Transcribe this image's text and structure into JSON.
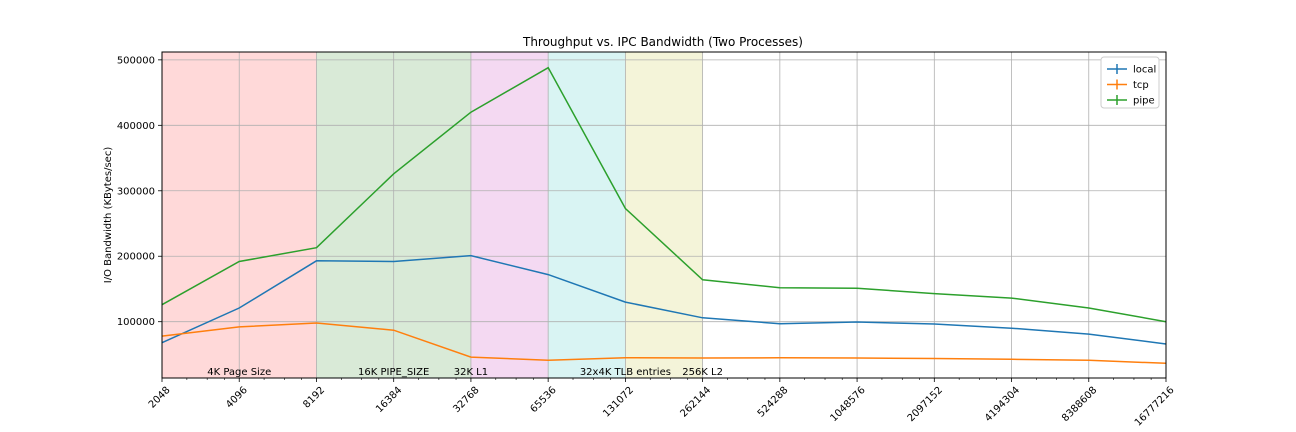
{
  "chart_data": {
    "type": "line",
    "title": "Throughput vs. IPC Bandwidth (Two Processes)",
    "xlabel": "",
    "ylabel": "I/O Bandwidth (KBytes/sec)",
    "x_scale": "log2",
    "x": [
      2048,
      4096,
      8192,
      16384,
      32768,
      65536,
      131072,
      262144,
      524288,
      1048576,
      2097152,
      4194304,
      8388608,
      16777216
    ],
    "x_tick_labels": [
      "2048",
      "4096",
      "8192",
      "16384",
      "32768",
      "65536",
      "131072",
      "262144",
      "524288",
      "1048576",
      "2097152",
      "4194304",
      "8388608",
      "16777216"
    ],
    "ylim": [
      14000,
      512000
    ],
    "y_ticks": [
      100000,
      200000,
      300000,
      400000,
      500000
    ],
    "y_tick_labels": [
      "100000",
      "200000",
      "300000",
      "400000",
      "500000"
    ],
    "grid": true,
    "legend_position": "top-right",
    "series": [
      {
        "name": "local",
        "color": "#1f77b4",
        "values": [
          68000,
          121000,
          193000,
          192000,
          201000,
          172000,
          130000,
          106000,
          97000,
          99500,
          96500,
          90000,
          81000,
          66000
        ]
      },
      {
        "name": "tcp",
        "color": "#ff7f0e",
        "values": [
          78000,
          92000,
          98000,
          87000,
          46000,
          41000,
          45000,
          44500,
          44800,
          44500,
          43800,
          42500,
          41000,
          36500
        ]
      },
      {
        "name": "pipe",
        "color": "#2ca02c",
        "values": [
          126000,
          192000,
          213000,
          326000,
          420000,
          488000,
          273000,
          164000,
          152000,
          151000,
          143000,
          136000,
          121000,
          100000
        ]
      }
    ],
    "regions": [
      {
        "x0": 2048,
        "x1": 8192,
        "color": "#ffd9d9"
      },
      {
        "x0": 8192,
        "x1": 32768,
        "color": "#d9ead7"
      },
      {
        "x0": 32768,
        "x1": 65536,
        "color": "#f4d9f2"
      },
      {
        "x0": 65536,
        "x1": 131072,
        "color": "#d9f4f3"
      },
      {
        "x0": 131072,
        "x1": 262144,
        "color": "#f4f4d9"
      }
    ],
    "annotations": [
      {
        "text": "4K Page Size",
        "x": 4096
      },
      {
        "text": "16K PIPE_SIZE",
        "x": 16384
      },
      {
        "text": "32K L1",
        "x": 32768
      },
      {
        "text": "32x4K TLB entries",
        "x": 131072
      },
      {
        "text": "256K L2",
        "x": 262144
      }
    ]
  }
}
